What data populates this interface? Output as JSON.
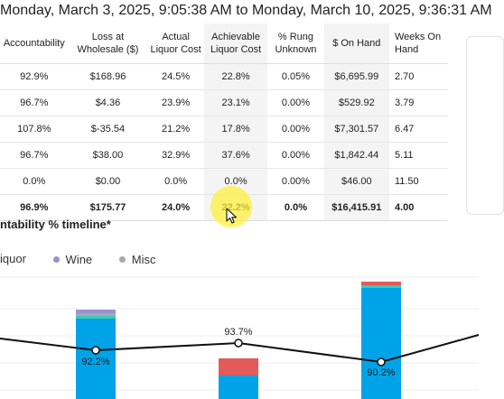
{
  "header": {
    "date_range": "Monday, March 3, 2025, 9:05:38 AM to Monday, March 10, 2025, 9:36:31 AM"
  },
  "table": {
    "columns": [
      "Accountability",
      "Loss at Wholesale ($)",
      "Actual Liquor Cost",
      "Achievable Liquor Cost",
      "% Rung Unknown",
      "$ On Hand",
      "Weeks On Hand"
    ],
    "rows": [
      [
        "92.9%",
        "$168.96",
        "24.5%",
        "22.8%",
        "0.05%",
        "$6,695.99",
        "2.70"
      ],
      [
        "96.7%",
        "$4.36",
        "23.9%",
        "23.1%",
        "0.00%",
        "$529.92",
        "3.79"
      ],
      [
        "107.8%",
        "$-35.54",
        "21.2%",
        "17.8%",
        "0.00%",
        "$7,301.57",
        "6.47"
      ],
      [
        "96.7%",
        "$38.00",
        "32.9%",
        "37.6%",
        "0.00%",
        "$1,842.44",
        "5.11"
      ],
      [
        "0.0%",
        "$0.00",
        "0.0%",
        "0.0%",
        "0.00%",
        "$46.00",
        "11.50"
      ]
    ],
    "total": [
      "96.9%",
      "$175.77",
      "24.0%",
      "22.2%",
      "0.0%",
      "$16,415.91",
      "4.00"
    ]
  },
  "timeline": {
    "title": "ntability % timeline*",
    "legend": [
      {
        "label": "iquor",
        "color": "#00a3e8"
      },
      {
        "label": "Wine",
        "color": "#9b8fd6"
      },
      {
        "label": "Misc",
        "color": "#a8a8a8"
      }
    ]
  },
  "chart_data": {
    "type": "bar",
    "series": [
      {
        "name": "Wine",
        "color": "#9b8fd6"
      },
      {
        "name": "Misc",
        "color": "#a8a8a8"
      }
    ],
    "line": {
      "values": [
        92.2,
        93.7,
        90.2
      ],
      "labels": [
        "92.2%",
        "93.7%",
        "90.2%"
      ]
    },
    "colors": {
      "blue": "#00a3e8",
      "red": "#e35a5a",
      "teal": "#3cc9b8",
      "purple": "#9b8fd6",
      "grey": "#a8a8a8"
    }
  }
}
